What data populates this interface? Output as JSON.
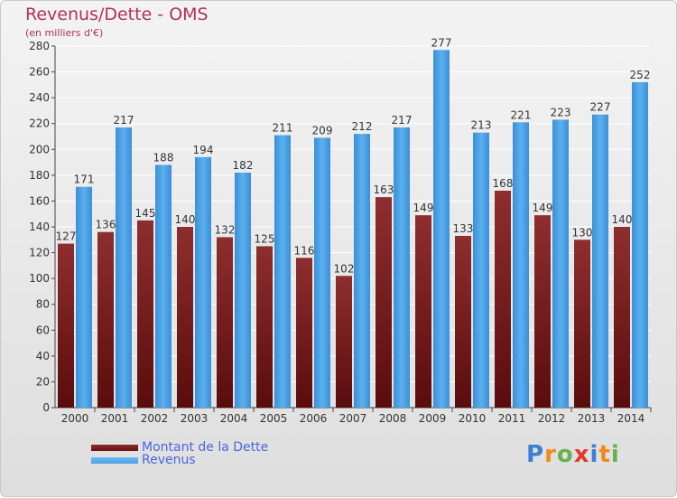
{
  "header": {
    "title": "Revenus/Dette - OMS",
    "subtitle": "(en milliers d'€)"
  },
  "chart_data": {
    "type": "bar",
    "categories": [
      "2000",
      "2001",
      "2002",
      "2003",
      "2004",
      "2005",
      "2006",
      "2007",
      "2008",
      "2009",
      "2010",
      "2011",
      "2012",
      "2013",
      "2014"
    ],
    "series": [
      {
        "name": "Montant de la Dette",
        "values": [
          127,
          136,
          145,
          140,
          132,
          125,
          116,
          102,
          163,
          149,
          133,
          168,
          149,
          130,
          140
        ],
        "color": "#7a1a1a"
      },
      {
        "name": "Revenus",
        "values": [
          171,
          217,
          188,
          194,
          182,
          211,
          209,
          212,
          217,
          277,
          213,
          221,
          223,
          227,
          252
        ],
        "color": "#4aa0e6"
      }
    ],
    "ylim": [
      0,
      280
    ],
    "yticks": [
      0,
      20,
      40,
      60,
      80,
      100,
      120,
      140,
      160,
      180,
      200,
      220,
      240,
      260,
      280
    ],
    "grid": true,
    "legend_position": "bottom-left"
  },
  "legend": {
    "items": [
      {
        "label": "Montant de la Dette",
        "color": "#6a1212"
      },
      {
        "label": "Revenus",
        "color": "#4aa0e6"
      }
    ]
  },
  "logo": {
    "letters": [
      "P",
      "r",
      "o",
      "x",
      "i",
      "t",
      "i"
    ],
    "colors": [
      "#3a7fd6",
      "#f08a1c",
      "#6ab04c",
      "#e03a2c",
      "#3a7fd6",
      "#f08a1c",
      "#6ab04c"
    ]
  }
}
